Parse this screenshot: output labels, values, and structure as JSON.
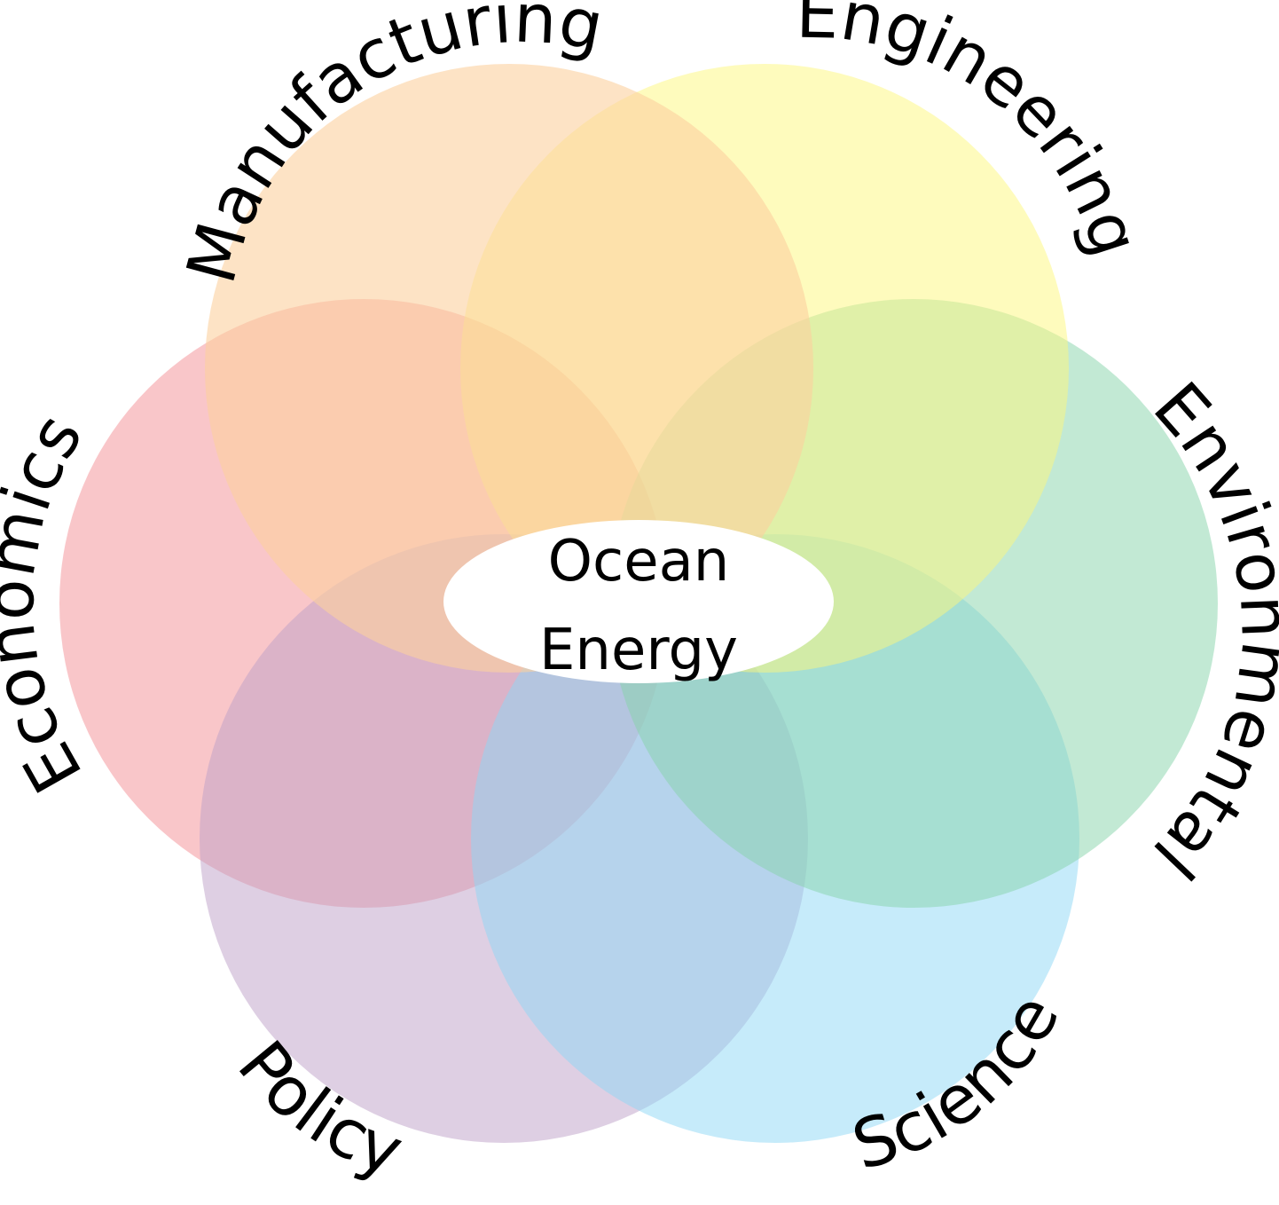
{
  "center": {
    "line1": "Ocean",
    "line2": "Energy"
  },
  "circles": [
    {
      "id": "manufacturing",
      "label": "Manufacturing",
      "color": "#fbd09f",
      "opacity": 0.6
    },
    {
      "id": "engineering",
      "label": "Engineering",
      "color": "#fef77c",
      "opacity": 0.5
    },
    {
      "id": "environmental",
      "label": "Environmental",
      "color": "#86d4aa",
      "opacity": 0.5
    },
    {
      "id": "science",
      "label": "Science",
      "color": "#8dd8f6",
      "opacity": 0.5
    },
    {
      "id": "policy",
      "label": "Policy",
      "color": "#bda0c8",
      "opacity": 0.5
    },
    {
      "id": "economics",
      "label": "Economics",
      "color": "#f38e94",
      "opacity": 0.5
    }
  ]
}
